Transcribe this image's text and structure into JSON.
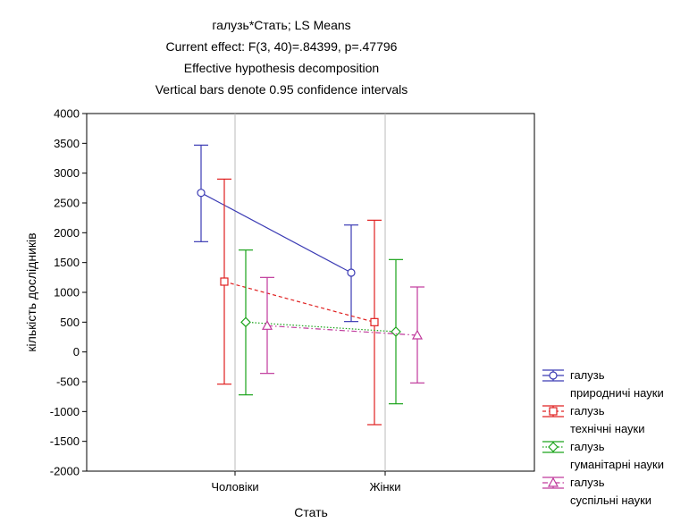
{
  "chart_data": {
    "type": "line",
    "title_lines": [
      "галузь*Стать; LS Means",
      "Current effect: F(3, 40)=.84399, p=.47796",
      "Effective hypothesis decomposition",
      "Vertical bars denote 0.95 confidence intervals"
    ],
    "xlabel": "Стать",
    "ylabel": "кількість дослідників",
    "categories": [
      "Чоловіки",
      "Жінки"
    ],
    "ylim": [
      -2000,
      4000
    ],
    "yticks": [
      4000,
      3500,
      3000,
      2500,
      2000,
      1500,
      1000,
      500,
      0,
      -500,
      -1000,
      -1500,
      -2000
    ],
    "grid": "vertical",
    "legend_position": "right",
    "series": [
      {
        "legend_line1": "галузь",
        "legend_line2": "природничі науки",
        "color": "#3b3bb4",
        "marker": "circle",
        "dash": "solid",
        "values": [
          2670,
          1330
        ],
        "lower": [
          1850,
          510
        ],
        "upper": [
          3470,
          2130
        ]
      },
      {
        "legend_line1": "галузь",
        "legend_line2": "технічні науки",
        "color": "#e02020",
        "marker": "square",
        "dash": "dashed",
        "values": [
          1180,
          500
        ],
        "lower": [
          -540,
          -1220
        ],
        "upper": [
          2900,
          2210
        ]
      },
      {
        "legend_line1": "галузь",
        "legend_line2": "гуманітарні науки",
        "color": "#1aa31a",
        "marker": "diamond",
        "dash": "dotted",
        "values": [
          500,
          340
        ],
        "lower": [
          -720,
          -870
        ],
        "upper": [
          1710,
          1550
        ]
      },
      {
        "legend_line1": "галузь",
        "legend_line2": "суспільні науки",
        "color": "#c03a9c",
        "marker": "triangle",
        "dash": "dashdot",
        "values": [
          440,
          280
        ],
        "lower": [
          -360,
          -520
        ],
        "upper": [
          1250,
          1090
        ]
      }
    ]
  }
}
